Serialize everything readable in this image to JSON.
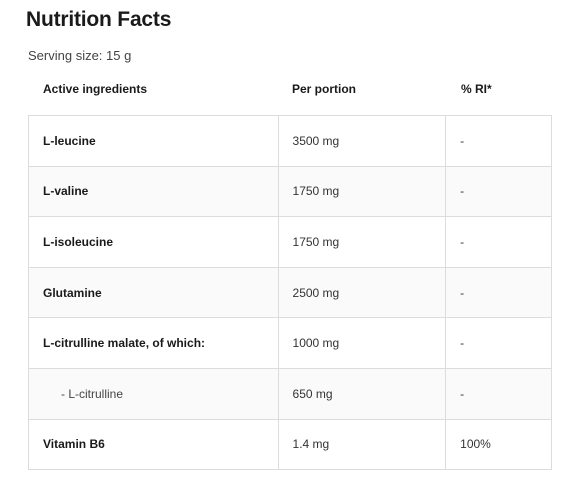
{
  "title": "Nutrition Facts",
  "serving_size": "Serving size: 15 g",
  "columns": {
    "ingredient": "Active ingredients",
    "portion": "Per portion",
    "ri": "% RI*"
  },
  "rows": [
    {
      "ingredient": "L-leucine",
      "portion": "3500 mg",
      "ri": "-",
      "sub": false
    },
    {
      "ingredient": "L-valine",
      "portion": "1750 mg",
      "ri": "-",
      "sub": false
    },
    {
      "ingredient": "L-isoleucine",
      "portion": "1750 mg",
      "ri": "-",
      "sub": false
    },
    {
      "ingredient": "Glutamine",
      "portion": "2500 mg",
      "ri": "-",
      "sub": false
    },
    {
      "ingredient": "L-citrulline malate, of which:",
      "portion": "1000 mg",
      "ri": "-",
      "sub": false
    },
    {
      "ingredient": "- L-citrulline",
      "portion": "650 mg",
      "ri": "-",
      "sub": true
    },
    {
      "ingredient": "Vitamin B6",
      "portion": "1.4 mg",
      "ri": "100%",
      "sub": false
    }
  ]
}
